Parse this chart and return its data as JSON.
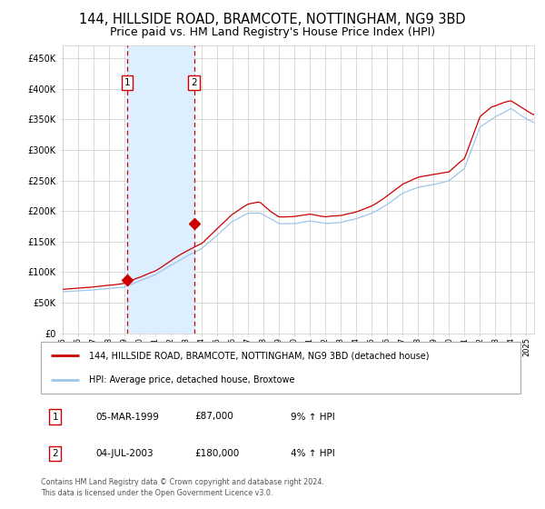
{
  "title": "144, HILLSIDE ROAD, BRAMCOTE, NOTTINGHAM, NG9 3BD",
  "subtitle": "Price paid vs. HM Land Registry's House Price Index (HPI)",
  "title_fontsize": 10.5,
  "subtitle_fontsize": 9,
  "xlim_start": 1995.0,
  "xlim_end": 2025.5,
  "ylim": [
    0,
    470000
  ],
  "yticks": [
    0,
    50000,
    100000,
    150000,
    200000,
    250000,
    300000,
    350000,
    400000,
    450000
  ],
  "ytick_labels": [
    "£0",
    "£50K",
    "£100K",
    "£150K",
    "£200K",
    "£250K",
    "£300K",
    "£350K",
    "£400K",
    "£450K"
  ],
  "sale1_date_num": 1999.17,
  "sale1_price": 87000,
  "sale2_date_num": 2003.5,
  "sale2_price": 180000,
  "hpi_color": "#9fc5e8",
  "price_color": "#cc0000",
  "shade_color": "#ddeeff",
  "dashed_line_color": "#cc0000",
  "background_color": "#ffffff",
  "grid_color": "#cccccc",
  "legend_label1": "144, HILLSIDE ROAD, BRAMCOTE, NOTTINGHAM, NG9 3BD (detached house)",
  "legend_label2": "HPI: Average price, detached house, Broxtowe",
  "annotation1_label": "1",
  "annotation2_label": "2",
  "table_row1": [
    "1",
    "05-MAR-1999",
    "£87,000",
    "9% ↑ HPI"
  ],
  "table_row2": [
    "2",
    "04-JUL-2003",
    "£180,000",
    "4% ↑ HPI"
  ],
  "footer": "Contains HM Land Registry data © Crown copyright and database right 2024.\nThis data is licensed under the Open Government Licence v3.0."
}
